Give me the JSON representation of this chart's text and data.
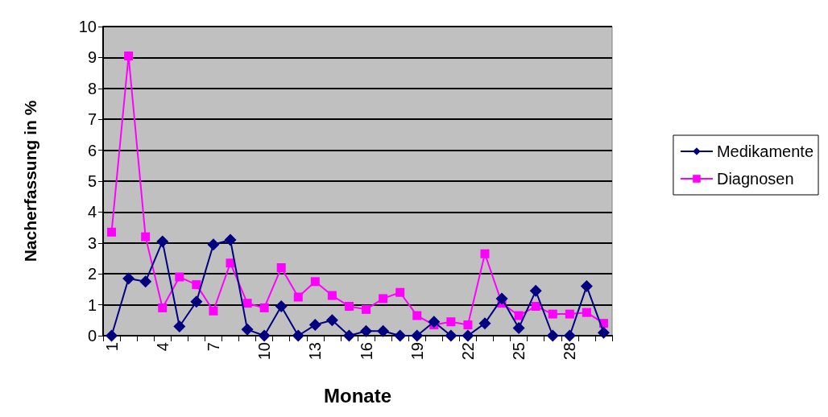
{
  "chart_data": {
    "type": "line",
    "xlabel": "Monate",
    "ylabel": "Nacherfassung in %",
    "categories": [
      "1",
      null,
      null,
      "4",
      null,
      null,
      "7",
      null,
      null,
      "10",
      null,
      null,
      "13",
      null,
      null,
      "16",
      null,
      null,
      "19",
      null,
      null,
      "22",
      null,
      null,
      "25",
      null,
      null,
      "28",
      null,
      null
    ],
    "series": [
      {
        "name": "Medikamente",
        "color": "#000080",
        "marker": "diamond",
        "values": [
          0,
          1.85,
          1.75,
          3.05,
          0.3,
          1.1,
          2.95,
          3.1,
          0.2,
          0,
          0.95,
          0,
          0.35,
          0.5,
          0,
          0.15,
          0.15,
          0,
          0,
          0.45,
          0,
          0,
          0.4,
          1.2,
          0.25,
          1.45,
          0,
          0,
          1.6,
          0.1
        ]
      },
      {
        "name": "Diagnosen",
        "color": "#ff00ff",
        "marker": "square",
        "values": [
          3.35,
          9.05,
          3.2,
          0.9,
          1.9,
          1.65,
          0.8,
          2.35,
          1.05,
          0.9,
          2.2,
          1.25,
          1.75,
          1.3,
          0.95,
          0.85,
          1.2,
          1.4,
          0.65,
          0.35,
          0.45,
          0.35,
          2.65,
          1.05,
          0.65,
          0.95,
          0.7,
          0.7,
          0.75,
          0.4
        ]
      }
    ],
    "ylim": [
      0,
      10
    ],
    "yticks": [
      0,
      1,
      2,
      3,
      4,
      5,
      6,
      7,
      8,
      9,
      10
    ],
    "grid": "y",
    "legend": "right"
  }
}
